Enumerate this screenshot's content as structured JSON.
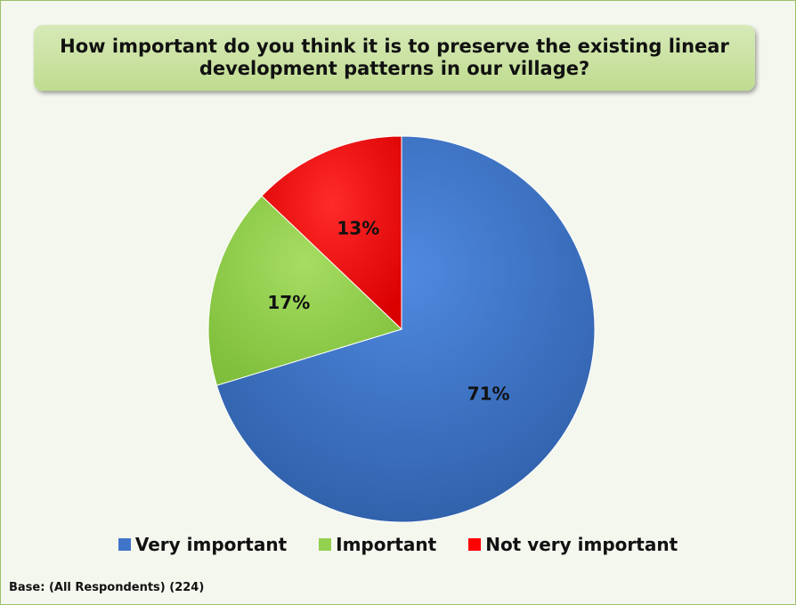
{
  "chart_data": {
    "type": "pie",
    "title": "How important do you think it is to preserve the existing linear development patterns in our village?",
    "categories": [
      "Very important",
      "Important",
      "Not very important"
    ],
    "values": [
      71,
      17,
      13
    ],
    "value_labels": [
      "71%",
      "17%",
      "13%"
    ],
    "colors": [
      "#3f74c9",
      "#92d050",
      "#ff0000"
    ],
    "legend_position": "bottom"
  },
  "footer": {
    "base_note": "Base: (All Respondents) (224)"
  }
}
